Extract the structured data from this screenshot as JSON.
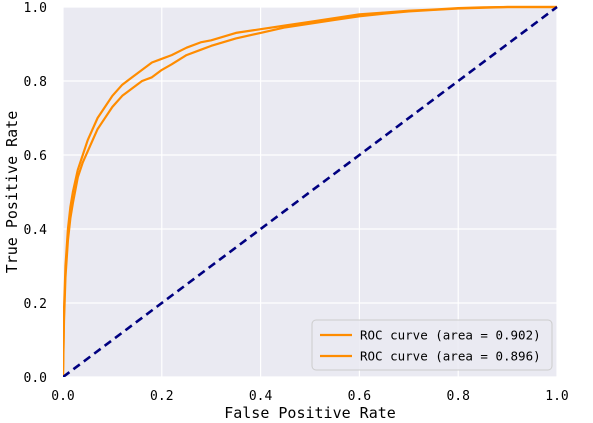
{
  "chart_data": {
    "type": "line",
    "title": "",
    "xlabel": "False Positive Rate",
    "ylabel": "True Positive Rate",
    "xlim": [
      0.0,
      1.0
    ],
    "ylim": [
      0.0,
      1.0
    ],
    "xticks": [
      "0.0",
      "0.2",
      "0.4",
      "0.6",
      "0.8",
      "1.0"
    ],
    "yticks": [
      "0.0",
      "0.2",
      "0.4",
      "0.6",
      "0.8",
      "1.0"
    ],
    "grid": true,
    "legend_position": "lower-right",
    "series": [
      {
        "name": "ROC curve (area = 0.902)",
        "color": "#ff8c00",
        "x": [
          0,
          0.002,
          0.005,
          0.01,
          0.015,
          0.02,
          0.03,
          0.04,
          0.05,
          0.06,
          0.07,
          0.08,
          0.1,
          0.12,
          0.14,
          0.16,
          0.18,
          0.2,
          0.22,
          0.25,
          0.28,
          0.3,
          0.35,
          0.4,
          0.45,
          0.5,
          0.55,
          0.6,
          0.65,
          0.7,
          0.75,
          0.8,
          0.85,
          0.9,
          0.95,
          1.0
        ],
        "y": [
          0,
          0.18,
          0.3,
          0.4,
          0.46,
          0.5,
          0.56,
          0.6,
          0.64,
          0.67,
          0.7,
          0.72,
          0.76,
          0.79,
          0.81,
          0.83,
          0.85,
          0.86,
          0.87,
          0.89,
          0.905,
          0.91,
          0.93,
          0.94,
          0.95,
          0.96,
          0.97,
          0.98,
          0.985,
          0.99,
          0.993,
          0.997,
          0.999,
          1.0,
          1.0,
          1.0
        ]
      },
      {
        "name": "ROC curve (area = 0.896)",
        "color": "#ff8c00",
        "x": [
          0,
          0.002,
          0.005,
          0.01,
          0.015,
          0.02,
          0.03,
          0.04,
          0.05,
          0.06,
          0.07,
          0.08,
          0.1,
          0.12,
          0.14,
          0.16,
          0.18,
          0.2,
          0.22,
          0.25,
          0.28,
          0.3,
          0.35,
          0.4,
          0.45,
          0.5,
          0.55,
          0.6,
          0.65,
          0.7,
          0.75,
          0.8,
          0.85,
          0.9,
          0.95,
          1.0
        ],
        "y": [
          0,
          0.15,
          0.27,
          0.37,
          0.43,
          0.47,
          0.54,
          0.58,
          0.61,
          0.64,
          0.67,
          0.69,
          0.73,
          0.76,
          0.78,
          0.8,
          0.81,
          0.83,
          0.845,
          0.87,
          0.885,
          0.895,
          0.915,
          0.93,
          0.945,
          0.955,
          0.965,
          0.975,
          0.982,
          0.988,
          0.992,
          0.996,
          0.998,
          1.0,
          1.0,
          1.0
        ]
      },
      {
        "name": "",
        "color": "#000080",
        "dashed": true,
        "x": [
          0,
          1
        ],
        "y": [
          0,
          1
        ]
      }
    ]
  }
}
